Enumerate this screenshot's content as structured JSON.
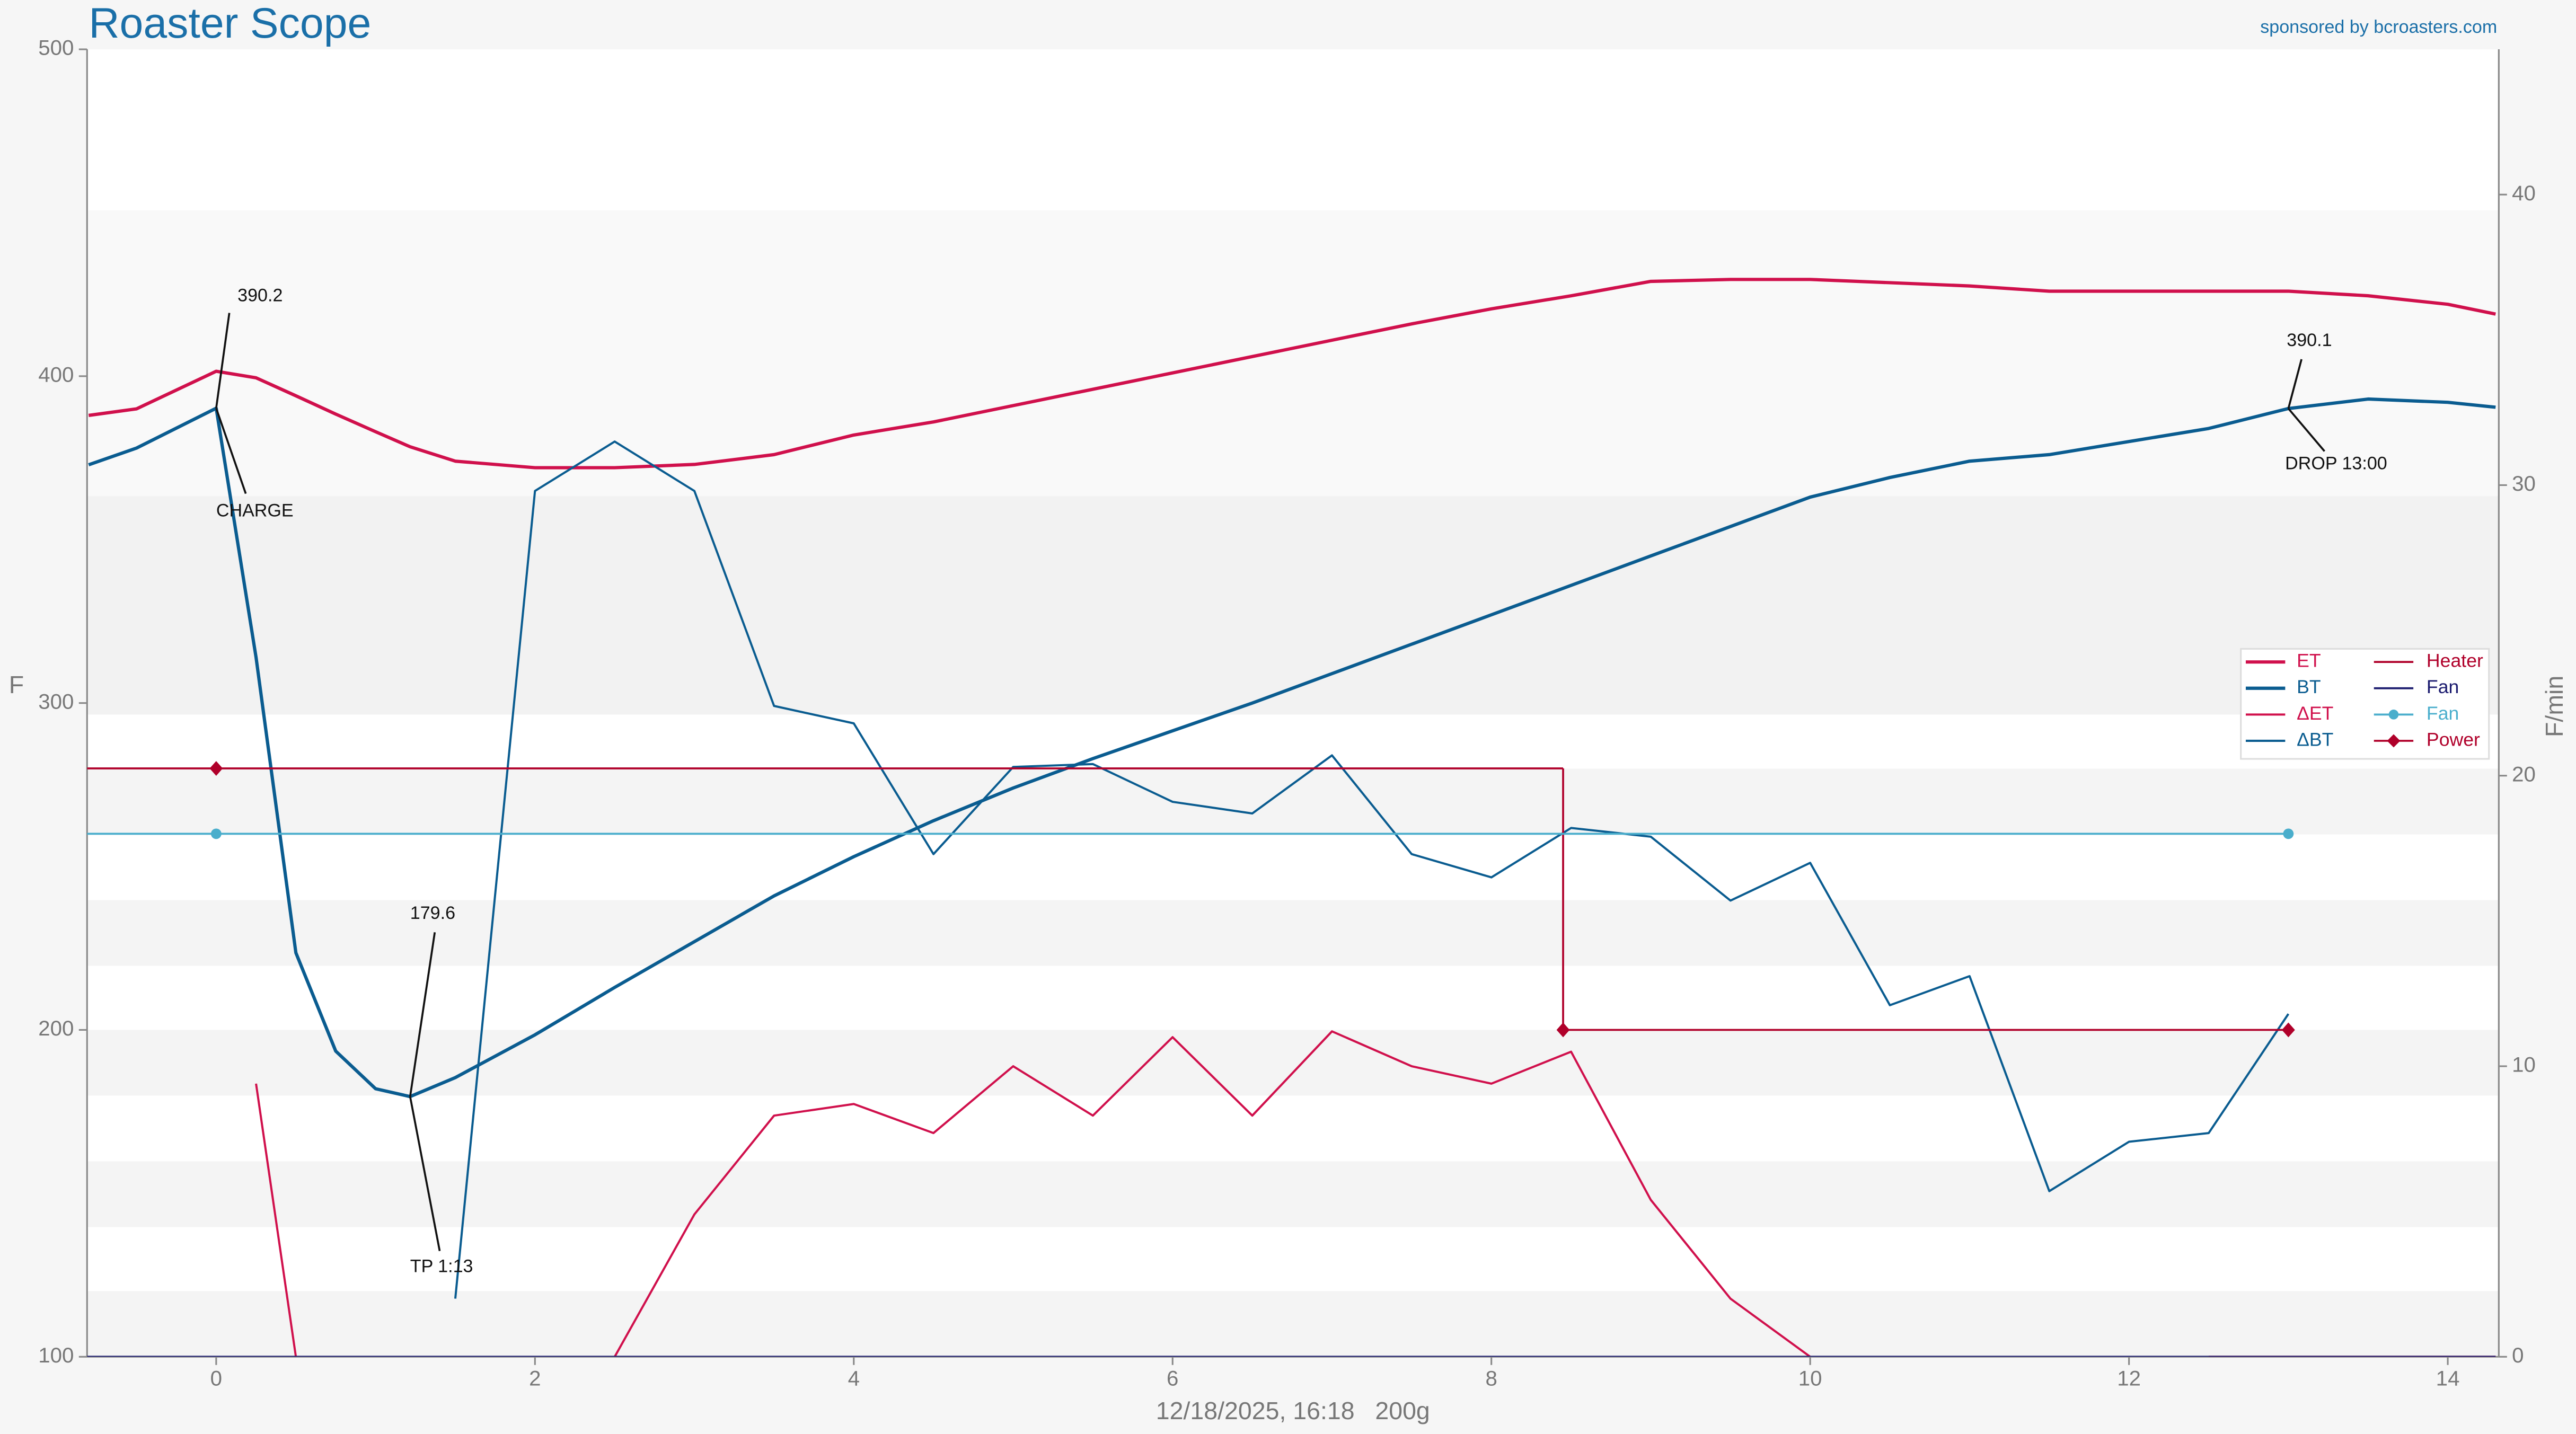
{
  "chart_data": {
    "type": "line",
    "title": "Roaster Scope",
    "sponsor": "sponsored by bcroasters.com",
    "footer": "12/18/2025, 16:18   200g",
    "ylabel": "F",
    "y2label": "F/min",
    "xlim": [
      -0.81,
      14.32
    ],
    "xticks": [
      0,
      2,
      4,
      6,
      8,
      10,
      12,
      14
    ],
    "ylim": [
      100,
      500
    ],
    "yticks": [
      100,
      200,
      300,
      400,
      500
    ],
    "y2lim": [
      0,
      45
    ],
    "y2ticks": [
      0,
      10,
      20,
      30,
      40
    ],
    "legend": "right",
    "x": [
      -0.8,
      -0.5,
      0,
      0.25,
      0.5,
      0.75,
      1,
      1.2167,
      1.5,
      2,
      2.5,
      3,
      3.5,
      4,
      4.5,
      5,
      5.5,
      6,
      6.5,
      7,
      7.5,
      8,
      8.5,
      9,
      9.5,
      10,
      10.5,
      11,
      11.5,
      12,
      12.5,
      13,
      13.5,
      14,
      14.3
    ],
    "series": [
      {
        "name": "ET",
        "color": "#d0104c",
        "width": 2,
        "values": [
          388,
          390,
          401.5,
          399.5,
          394,
          388.4,
          383,
          378.4,
          374,
          372,
          372,
          373,
          376,
          382,
          386,
          391,
          396,
          401,
          406,
          411,
          416,
          420.6,
          424.6,
          429,
          429.6,
          429.6,
          428.6,
          427.6,
          426,
          426,
          426,
          426,
          424.6,
          422,
          419
        ]
      },
      {
        "name": "BT",
        "color": "#0a5c90",
        "width": 2,
        "values": [
          372.9,
          378,
          390.2,
          314,
          223.6,
          193.5,
          182,
          179.6,
          185.4,
          198.5,
          213,
          227,
          241,
          253,
          264,
          274,
          283,
          291.5,
          300,
          309,
          318,
          327,
          336,
          345,
          354,
          363,
          369,
          374,
          376,
          380,
          384,
          390.1,
          393,
          392,
          390.5
        ]
      },
      {
        "name": "ΔET",
        "color": "#d0104c",
        "width": 1.3,
        "axis": "y2",
        "values": [
          null,
          null,
          null,
          9.4,
          0,
          null,
          null,
          null,
          null,
          null,
          0,
          4.9,
          8.3,
          8.7,
          7.7,
          10.0,
          8.3,
          11.0,
          8.3,
          11.2,
          10.0,
          9.4,
          10.5,
          5.4,
          2.0,
          0,
          null,
          null,
          0,
          null,
          0,
          0,
          0,
          0,
          0
        ]
      },
      {
        "name": "ΔBT",
        "color": "#0a5c90",
        "width": 1.3,
        "axis": "y2",
        "values": [
          null,
          null,
          null,
          null,
          null,
          null,
          null,
          null,
          2.0,
          29.8,
          31.5,
          29.8,
          22.4,
          21.8,
          17.3,
          20.3,
          20.4,
          19.1,
          18.7,
          20.7,
          17.3,
          16.5,
          18.2,
          17.9,
          15.7,
          17.0,
          12.1,
          13.1,
          5.7,
          7.4,
          7.7,
          11.8,
          null,
          null,
          null
        ]
      },
      {
        "name": "Heater",
        "color": "#b0002a",
        "width": 1.2,
        "step": true,
        "x": [
          0,
          8.45,
          13
        ],
        "values": [
          280,
          200,
          200
        ]
      },
      {
        "name": "Fan",
        "color": "#1a1a6e",
        "width": 1.2,
        "step": true,
        "x": [
          13.1,
          14.3
        ],
        "values": [
          100,
          100
        ]
      },
      {
        "name": "Fan",
        "color": "#4aaecc",
        "width": 1.2,
        "step": true,
        "marker": "circle",
        "x": [
          0,
          13
        ],
        "values": [
          260,
          260
        ]
      },
      {
        "name": "Power",
        "color": "#b0002a",
        "width": 1.2,
        "marker": "diamond",
        "x": [
          0,
          8.45,
          13
        ],
        "values": [
          280,
          200,
          200
        ]
      }
    ],
    "annotations": [
      {
        "x": 0,
        "y": 390.2,
        "event": "CHARGE"
      },
      {
        "x": 1.2167,
        "y": 179.6,
        "event": "TP 1:13"
      },
      {
        "x": 13,
        "y": 390.1,
        "event": "DROP 13:00"
      }
    ]
  }
}
